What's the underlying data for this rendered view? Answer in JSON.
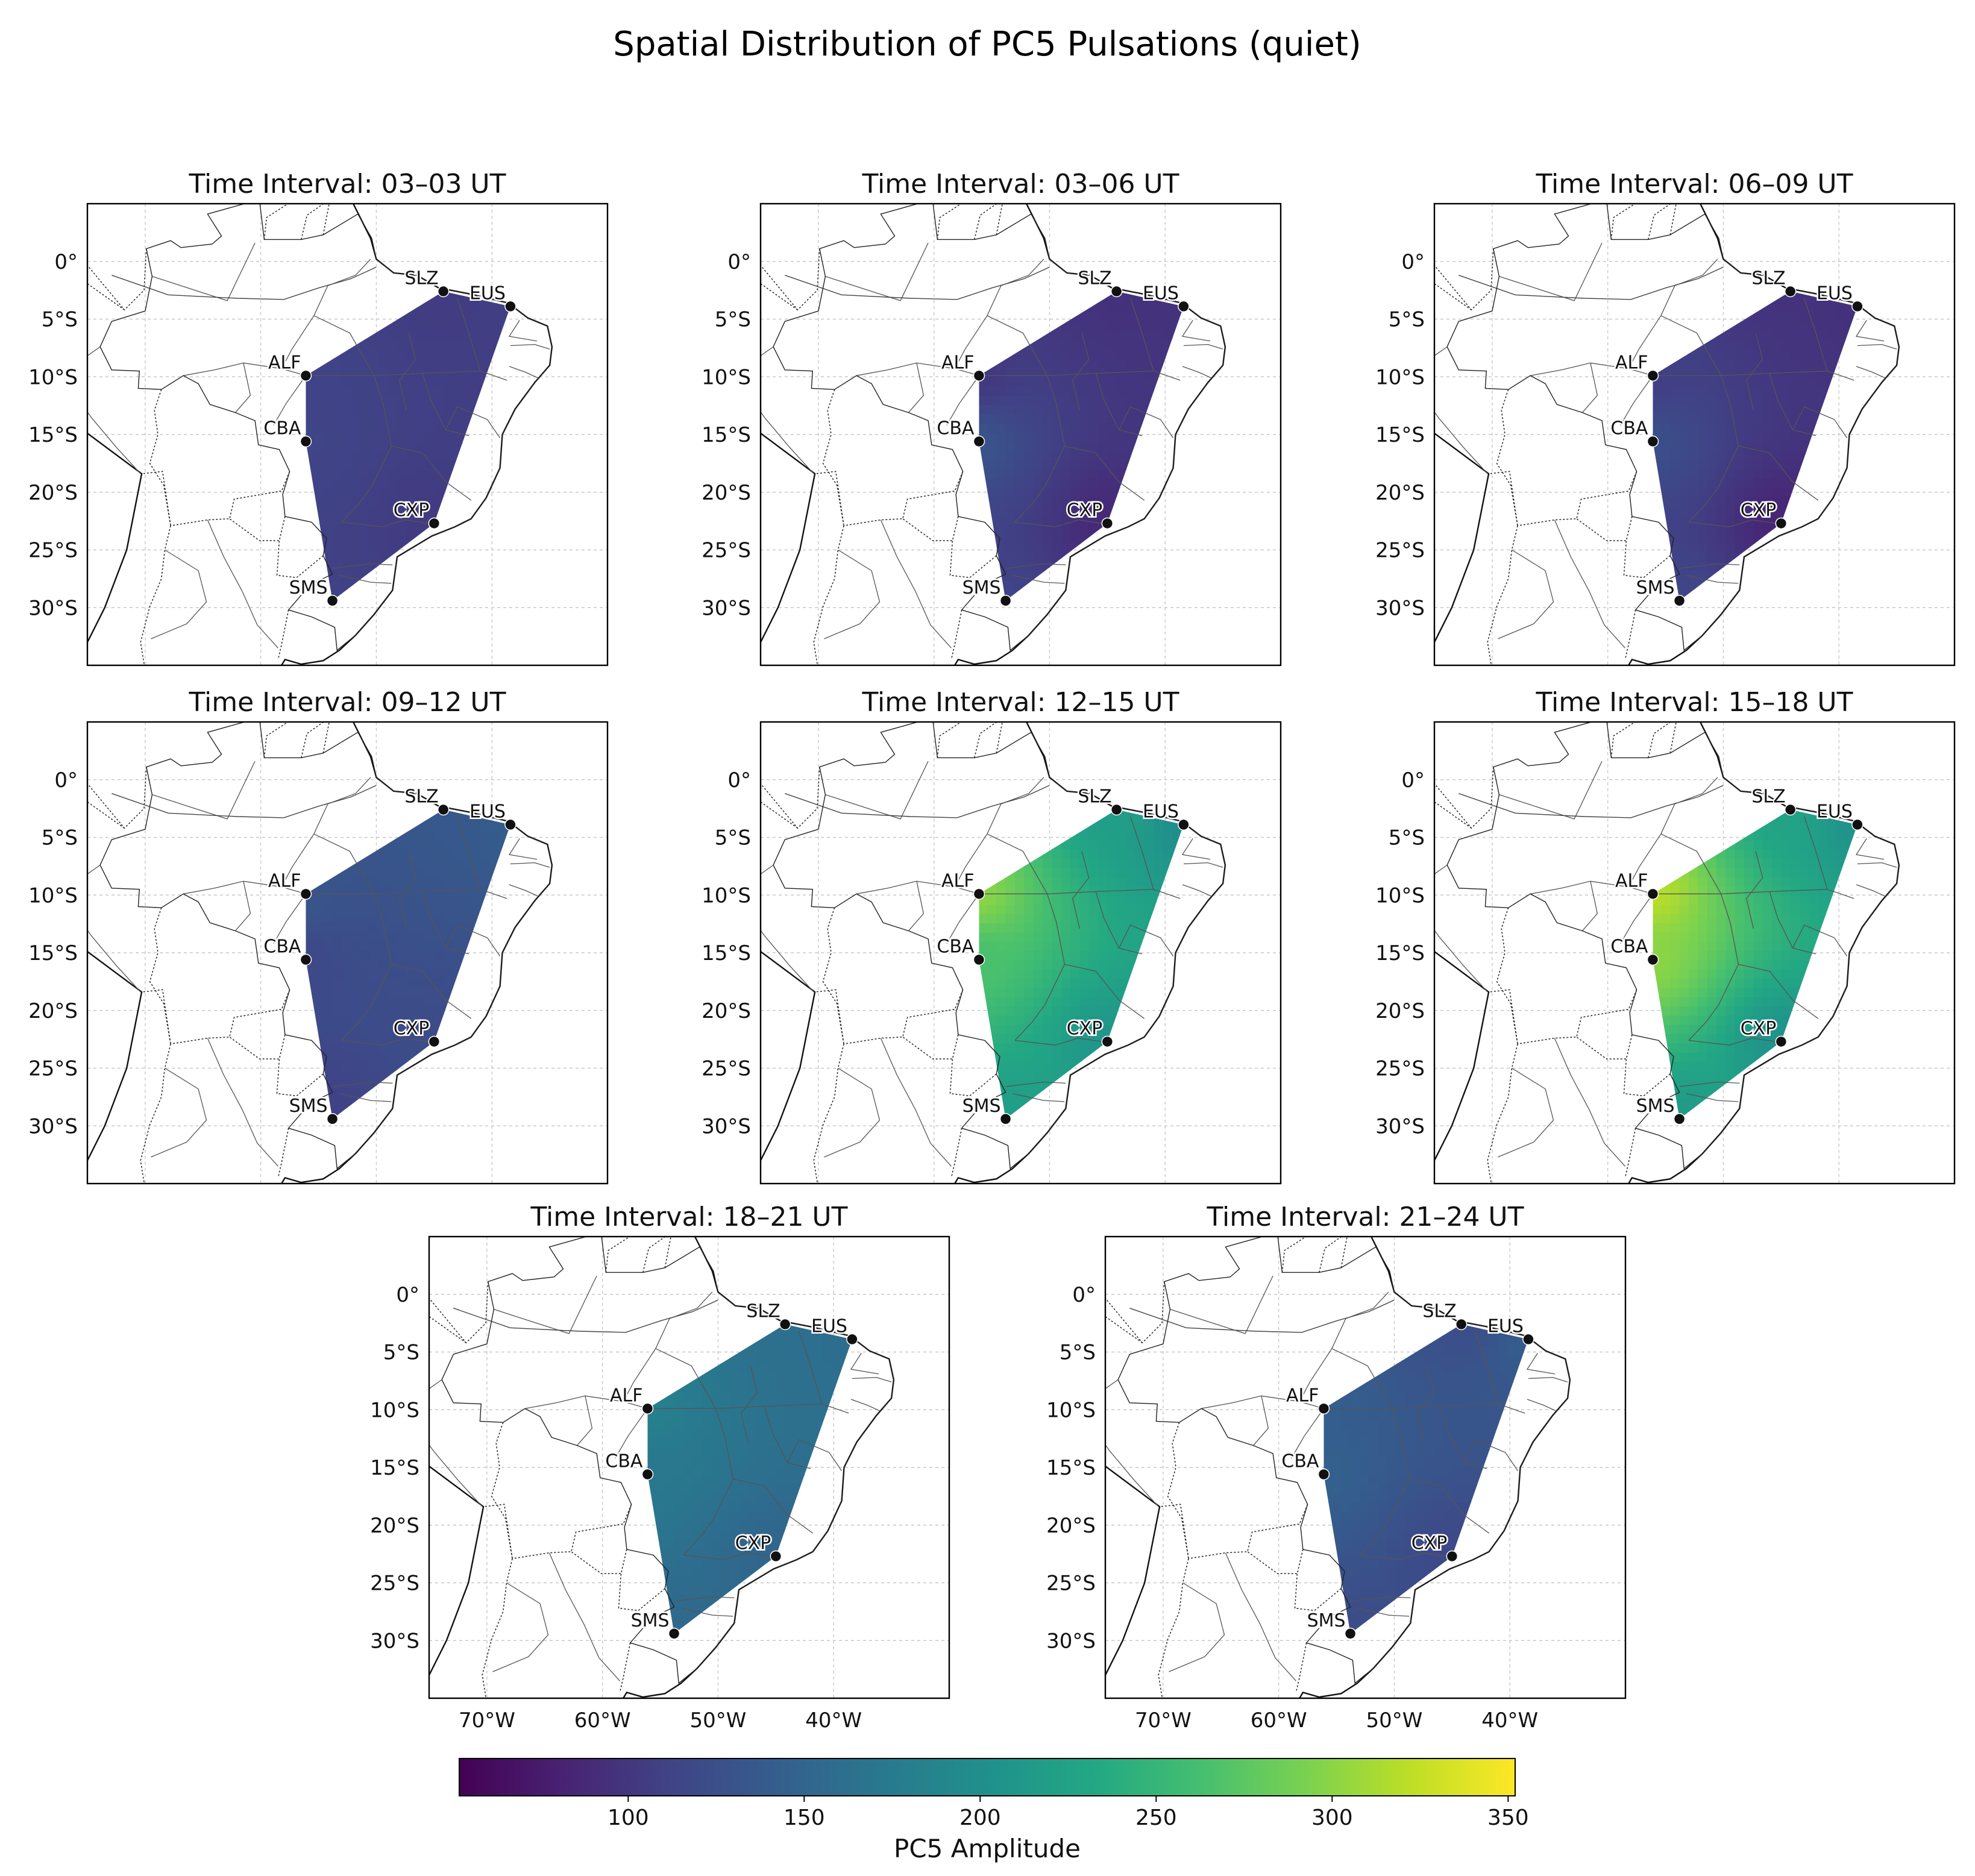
{
  "figure": {
    "title": "Spatial Distribution of PC5 Pulsations (quiet)"
  },
  "chart_data": {
    "type": "heatmap",
    "title": "Spatial Distribution of PC5 Pulsations (quiet)",
    "lon_ticks": [
      -70,
      -60,
      -50,
      -40
    ],
    "lon_tick_labels": [
      "70°W",
      "60°W",
      "50°W",
      "40°W"
    ],
    "lat_ticks": [
      0,
      -5,
      -10,
      -15,
      -20,
      -25,
      -30
    ],
    "lat_tick_labels": [
      "0°",
      "5°S",
      "10°S",
      "15°S",
      "20°S",
      "25°S",
      "30°S"
    ],
    "lon_range": [
      -75,
      -30
    ],
    "lat_range": [
      -35,
      5
    ],
    "grid": true,
    "stations": [
      {
        "code": "SLZ",
        "lon": -44.2,
        "lat": -2.6
      },
      {
        "code": "EUS",
        "lon": -38.4,
        "lat": -3.9
      },
      {
        "code": "ALF",
        "lon": -56.1,
        "lat": -9.9
      },
      {
        "code": "CBA",
        "lon": -56.1,
        "lat": -15.6
      },
      {
        "code": "CXP",
        "lon": -45.0,
        "lat": -22.7
      },
      {
        "code": "SMS",
        "lon": -53.8,
        "lat": -29.4
      }
    ],
    "panels": [
      {
        "title": "Time Interval: 03–03 UT",
        "values": {
          "SLZ": 105,
          "EUS": 108,
          "ALF": 112,
          "CBA": 114,
          "CXP": 104,
          "SMS": 110
        }
      },
      {
        "title": "Time Interval: 03–06 UT",
        "values": {
          "SLZ": 95,
          "EUS": 96,
          "ALF": 102,
          "CBA": 130,
          "CXP": 88,
          "SMS": 112
        }
      },
      {
        "title": "Time Interval: 06–09 UT",
        "values": {
          "SLZ": 96,
          "EUS": 95,
          "ALF": 108,
          "CBA": 125,
          "CXP": 84,
          "SMS": 115
        }
      },
      {
        "title": "Time Interval: 09–12 UT",
        "values": {
          "SLZ": 135,
          "EUS": 140,
          "ALF": 132,
          "CBA": 118,
          "CXP": 122,
          "SMS": 110
        }
      },
      {
        "title": "Time Interval: 12–15 UT",
        "values": {
          "SLZ": 220,
          "EUS": 200,
          "ALF": 300,
          "CBA": 265,
          "CXP": 210,
          "SMS": 220
        }
      },
      {
        "title": "Time Interval: 15–18 UT",
        "values": {
          "SLZ": 225,
          "EUS": 205,
          "ALF": 320,
          "CBA": 300,
          "CXP": 205,
          "SMS": 215
        }
      },
      {
        "title": "Time Interval: 18–21 UT",
        "values": {
          "SLZ": 162,
          "EUS": 160,
          "ALF": 182,
          "CBA": 172,
          "CXP": 150,
          "SMS": 155
        }
      },
      {
        "title": "Time Interval: 21–24 UT",
        "values": {
          "SLZ": 124,
          "EUS": 140,
          "ALF": 142,
          "CBA": 145,
          "CXP": 118,
          "SMS": 122
        }
      }
    ],
    "colorbar": {
      "label": "PC5 Amplitude",
      "colormap": "viridis",
      "range": [
        52,
        352
      ],
      "ticks": [
        100,
        150,
        200,
        250,
        300,
        350
      ],
      "tick_labels": [
        "100",
        "150",
        "200",
        "250",
        "300",
        "350"
      ]
    }
  }
}
